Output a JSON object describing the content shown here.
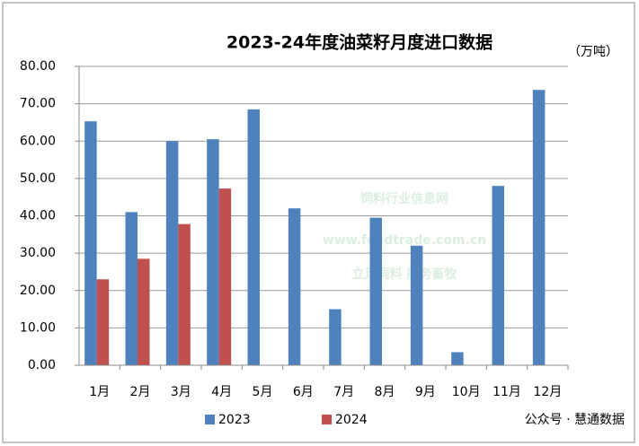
{
  "chart_data": {
    "type": "bar",
    "title": "2023-24年度油菜籽月度进口数据",
    "unit_label": "（万吨）",
    "categories": [
      "1月",
      "2月",
      "3月",
      "4月",
      "5月",
      "6月",
      "7月",
      "8月",
      "9月",
      "10月",
      "11月",
      "12月"
    ],
    "series": [
      {
        "name": "2023",
        "color": "#4f81bd",
        "values": [
          65.3,
          41,
          60,
          60.5,
          68.5,
          42,
          15,
          39.5,
          32,
          3.5,
          48,
          73.7
        ]
      },
      {
        "name": "2024",
        "color": "#c0504d",
        "values": [
          23,
          28.5,
          37.8,
          47.3,
          null,
          null,
          null,
          null,
          null,
          null,
          null,
          null
        ]
      }
    ],
    "ylim": [
      0,
      80
    ],
    "yticks": [
      {
        "value": 0,
        "label": "0.00"
      },
      {
        "value": 10,
        "label": "10.00"
      },
      {
        "value": 20,
        "label": "20.00"
      },
      {
        "value": 30,
        "label": "30.00"
      },
      {
        "value": 40,
        "label": "40.00"
      },
      {
        "value": 50,
        "label": "50.00"
      },
      {
        "value": 60,
        "label": "60.00"
      },
      {
        "value": 70,
        "label": "70.00"
      },
      {
        "value": 80,
        "label": "80.00"
      }
    ],
    "grid": true,
    "legend": "bottom",
    "annotations": [
      "饲料行业信息网",
      "www.feedtrade.com.cn",
      "立足饲料 服务畜牧",
      "公众号 · 慧通数据"
    ]
  }
}
